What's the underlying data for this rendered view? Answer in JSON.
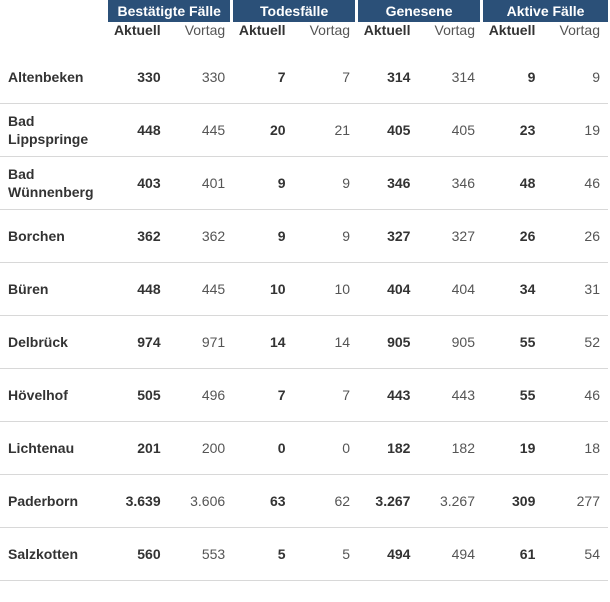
{
  "header": {
    "groups": [
      "Bestätigte Fälle",
      "Todesfälle",
      "Genesene",
      "Aktive Fälle"
    ],
    "sub_current": "Aktuell",
    "sub_previous": "Vortag"
  },
  "rows": [
    {
      "name": "Altenbeken",
      "values": [
        "330",
        "330",
        "7",
        "7",
        "314",
        "314",
        "9",
        "9"
      ]
    },
    {
      "name": "Bad\nLippspringe",
      "values": [
        "448",
        "445",
        "20",
        "21",
        "405",
        "405",
        "23",
        "19"
      ]
    },
    {
      "name": "Bad\nWünnenberg",
      "values": [
        "403",
        "401",
        "9",
        "9",
        "346",
        "346",
        "48",
        "46"
      ]
    },
    {
      "name": "Borchen",
      "values": [
        "362",
        "362",
        "9",
        "9",
        "327",
        "327",
        "26",
        "26"
      ]
    },
    {
      "name": "Büren",
      "values": [
        "448",
        "445",
        "10",
        "10",
        "404",
        "404",
        "34",
        "31"
      ]
    },
    {
      "name": "Delbrück",
      "values": [
        "974",
        "971",
        "14",
        "14",
        "905",
        "905",
        "55",
        "52"
      ]
    },
    {
      "name": "Hövelhof",
      "values": [
        "505",
        "496",
        "7",
        "7",
        "443",
        "443",
        "55",
        "46"
      ]
    },
    {
      "name": "Lichtenau",
      "values": [
        "201",
        "200",
        "0",
        "0",
        "182",
        "182",
        "19",
        "18"
      ]
    },
    {
      "name": "Paderborn",
      "values": [
        "3.639",
        "3.606",
        "63",
        "62",
        "3.267",
        "3.267",
        "309",
        "277"
      ]
    },
    {
      "name": "Salzkotten",
      "values": [
        "560",
        "553",
        "5",
        "5",
        "494",
        "494",
        "61",
        "54"
      ]
    }
  ]
}
